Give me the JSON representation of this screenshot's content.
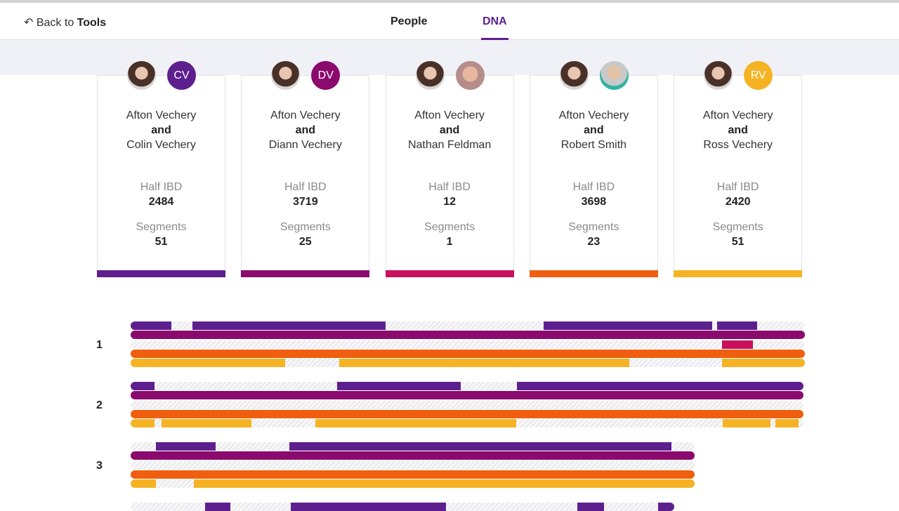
{
  "header": {
    "back_prefix": "Back to",
    "back_bold": "Tools",
    "tabs": [
      {
        "label": "People"
      },
      {
        "label": "DNA",
        "active": true
      }
    ]
  },
  "colors": {
    "accent": "#5e1f8e",
    "band": "#f0f1f6"
  },
  "cards": [
    {
      "person_a": "Afton Vechery",
      "and": "and",
      "person_b": "Colin Vechery",
      "initials": "CV",
      "avatar_color": "#5e1f8e",
      "half_ibd_label": "Half IBD",
      "half_ibd": "2484",
      "segments_label": "Segments",
      "segments": "51",
      "color": "#5e1f8e"
    },
    {
      "person_a": "Afton Vechery",
      "and": "and",
      "person_b": "Diann Vechery",
      "initials": "DV",
      "avatar_color": "#8b0a6e",
      "half_ibd_label": "Half IBD",
      "half_ibd": "3719",
      "segments_label": "Segments",
      "segments": "25",
      "color": "#8b0a6e"
    },
    {
      "person_a": "Afton Vechery",
      "and": "and",
      "person_b": "Nathan Feldman",
      "initials": "",
      "avatar_color": "photo",
      "half_ibd_label": "Half IBD",
      "half_ibd": "12",
      "segments_label": "Segments",
      "segments": "1",
      "color": "#c8105c"
    },
    {
      "person_a": "Afton Vechery",
      "and": "and",
      "person_b": "Robert Smith",
      "initials": "",
      "avatar_color": "photo",
      "half_ibd_label": "Half IBD",
      "half_ibd": "3698",
      "segments_label": "Segments",
      "segments": "23",
      "color": "#ef5f0f"
    },
    {
      "person_a": "Afton Vechery",
      "and": "and",
      "person_b": "Ross Vechery",
      "initials": "RV",
      "avatar_color": "#f5b324",
      "half_ibd_label": "Half IBD",
      "half_ibd": "2420",
      "segments_label": "Segments",
      "segments": "51",
      "color": "#f5b324"
    }
  ],
  "chromosomes": [
    {
      "label": "1",
      "length": 100,
      "rows": [
        [
          [
            0,
            6
          ],
          [
            9.2,
            37.8
          ],
          [
            61.3,
            86.3
          ],
          [
            87,
            92.9
          ]
        ],
        [
          [
            0,
            100
          ]
        ],
        [
          [
            87.7,
            92.3
          ]
        ],
        [
          [
            0,
            100
          ]
        ],
        [
          [
            0,
            22.9
          ],
          [
            30.9,
            74
          ],
          [
            87.7,
            100
          ]
        ]
      ]
    },
    {
      "label": "2",
      "length": 99.8,
      "rows": [
        [
          [
            0,
            3.5
          ],
          [
            30.6,
            49
          ],
          [
            57.3,
            99.8
          ]
        ],
        [
          [
            0,
            99.8
          ]
        ],
        [],
        [
          [
            0,
            99.8
          ]
        ],
        [
          [
            0,
            3.5
          ],
          [
            4.6,
            17.9
          ],
          [
            27.4,
            57.2
          ],
          [
            87.8,
            94.9
          ],
          [
            95.6,
            99.1
          ]
        ]
      ]
    },
    {
      "label": "3",
      "length": 83.6,
      "rows": [
        [
          [
            3.8,
            12.6
          ],
          [
            23.5,
            80.2
          ]
        ],
        [
          [
            0,
            83.6
          ]
        ],
        [],
        [
          [
            0,
            83.6
          ]
        ],
        [
          [
            0,
            3.8
          ],
          [
            9.4,
            83.6
          ]
        ]
      ]
    },
    {
      "label": "",
      "length": 80.6,
      "rows": [
        [
          [
            11,
            14.8
          ],
          [
            23.7,
            46.8
          ],
          [
            66.3,
            70.2
          ],
          [
            78.2,
            80.6
          ]
        ]
      ]
    }
  ]
}
